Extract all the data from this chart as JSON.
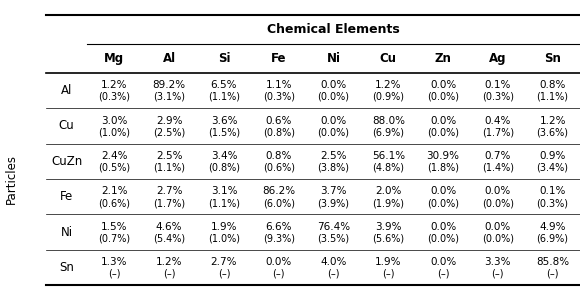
{
  "title": "Chemical Elements",
  "col_headers": [
    "Mg",
    "Al",
    "Si",
    "Fe",
    "Ni",
    "Cu",
    "Zn",
    "Ag",
    "Sn"
  ],
  "row_headers": [
    "Al",
    "Cu",
    "CuZn",
    "Fe",
    "Ni",
    "Sn"
  ],
  "group_label": "Particles",
  "col_group_label": "Chemical Elements",
  "cells": [
    [
      "1.2%\n(0.3%)",
      "89.2%\n(3.1%)",
      "6.5%\n(1.1%)",
      "1.1%\n(0.3%)",
      "0.0%\n(0.0%)",
      "1.2%\n(0.9%)",
      "0.0%\n(0.0%)",
      "0.1%\n(0.3%)",
      "0.8%\n(1.1%)"
    ],
    [
      "3.0%\n(1.0%)",
      "2.9%\n(2.5%)",
      "3.6%\n(1.5%)",
      "0.6%\n(0.8%)",
      "0.0%\n(0.0%)",
      "88.0%\n(6.9%)",
      "0.0%\n(0.0%)",
      "0.4%\n(1.7%)",
      "1.2%\n(3.6%)"
    ],
    [
      "2.4%\n(0.5%)",
      "2.5%\n(1.1%)",
      "3.4%\n(0.8%)",
      "0.8%\n(0.6%)",
      "2.5%\n(3.8%)",
      "56.1%\n(4.8%)",
      "30.9%\n(1.8%)",
      "0.7%\n(1.4%)",
      "0.9%\n(3.4%)"
    ],
    [
      "2.1%\n(0.6%)",
      "2.7%\n(1.7%)",
      "3.1%\n(1.1%)",
      "86.2%\n(6.0%)",
      "3.7%\n(3.9%)",
      "2.0%\n(1.9%)",
      "0.0%\n(0.0%)",
      "0.0%\n(0.0%)",
      "0.1%\n(0.3%)"
    ],
    [
      "1.5%\n(0.7%)",
      "4.6%\n(5.4%)",
      "1.9%\n(1.0%)",
      "6.6%\n(9.3%)",
      "76.4%\n(3.5%)",
      "3.9%\n(5.6%)",
      "0.0%\n(0.0%)",
      "0.0%\n(0.0%)",
      "4.9%\n(6.9%)"
    ],
    [
      "1.3%\n(–)",
      "1.2%\n(–)",
      "2.7%\n(–)",
      "0.0%\n(–)",
      "4.0%\n(–)",
      "1.9%\n(–)",
      "0.0%\n(–)",
      "3.3%\n(–)",
      "85.8%\n(–)"
    ]
  ],
  "bg_color": "#ffffff",
  "text_color": "#000000",
  "header_color": "#000000",
  "line_color": "#000000"
}
